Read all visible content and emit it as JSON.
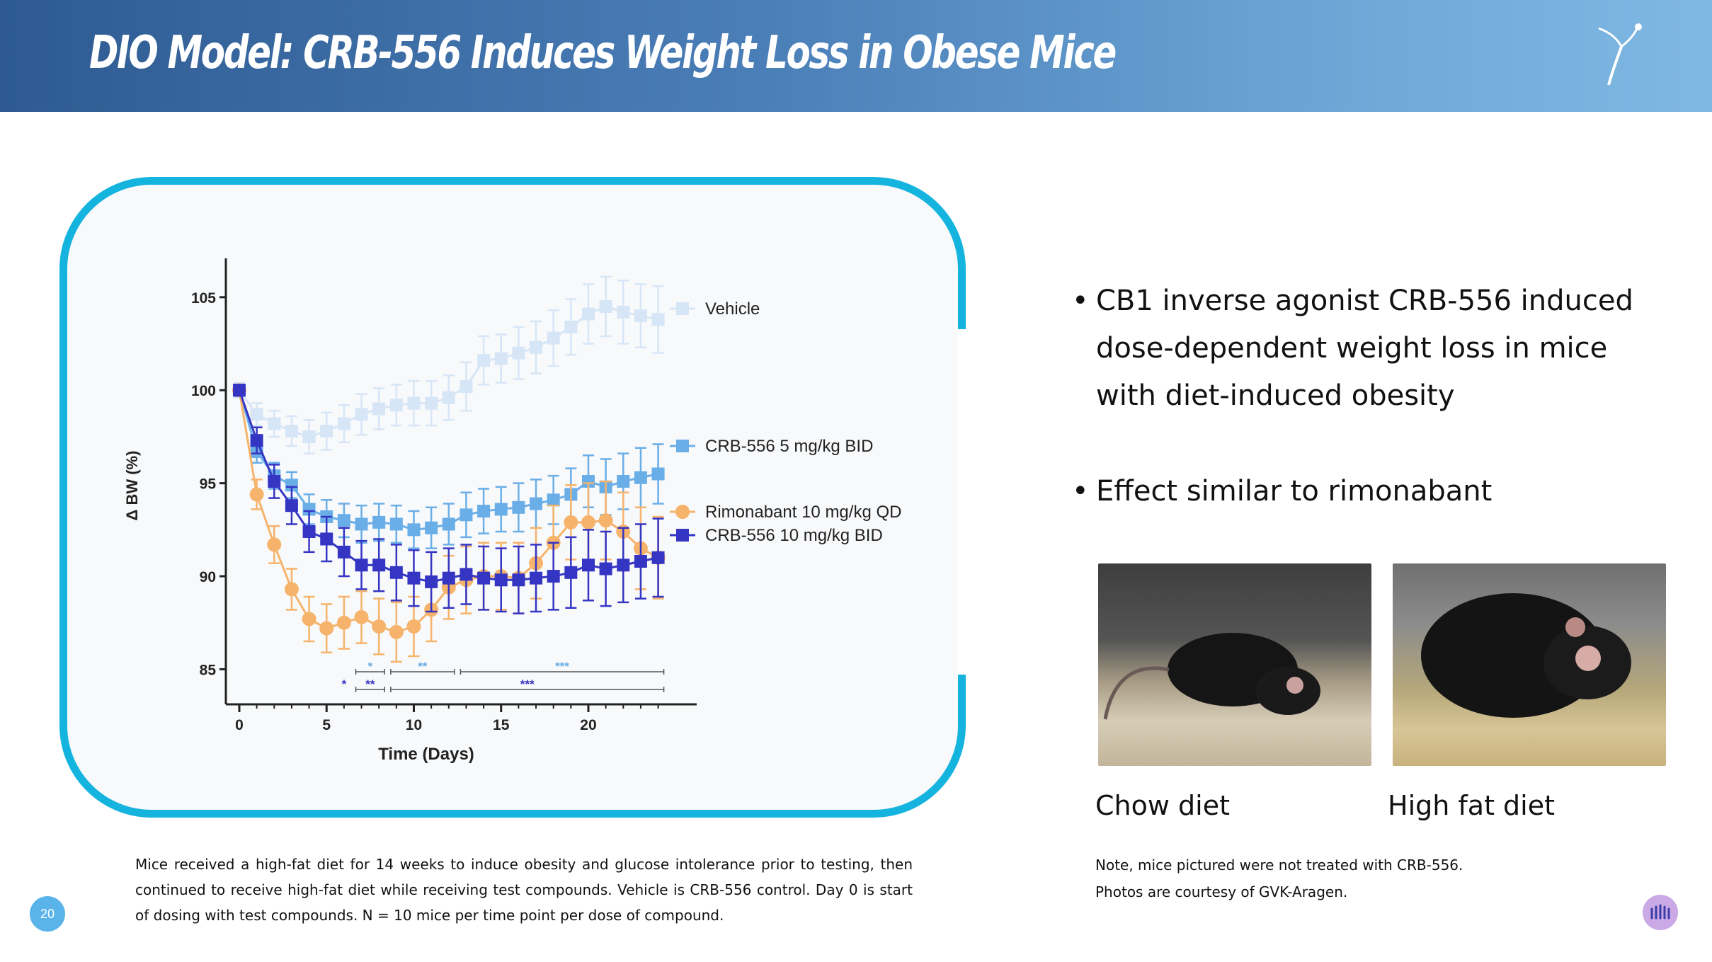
{
  "header": {
    "title": "DIO Model: CRB-556 Induces Weight Loss in Obese Mice"
  },
  "bullets": [
    "CB1 inverse agonist CRB-556 induced dose-dependent weight loss in mice with diet-induced obesity",
    "Effect similar to rimonabant"
  ],
  "photos": {
    "chow_caption": "Chow diet",
    "high_fat_caption": "High fat diet"
  },
  "footnote": "Mice received a high-fat diet for 14 weeks to induce obesity and glucose intolerance prior to testing, then continued to receive high-fat diet while receiving test compounds. Vehicle is CRB-556 control. Day 0 is start of dosing with test compounds. N = 10 mice per time point per dose of compound.",
  "note": {
    "line1": "Note, mice pictured were not treated with CRB-556.",
    "line2": "Photos are courtesy of GVK-Aragen."
  },
  "page_number": "20",
  "colors": {
    "vehicle": "#d6e6f7",
    "crb5": "#6aaee8",
    "crb10": "#3535c4",
    "rimonabant": "#f6b36b",
    "panel_border": "#14b4df"
  },
  "chart_data": {
    "type": "line",
    "xlabel": "Time (Days)",
    "ylabel": "Δ BW (%)",
    "xlim": [
      0,
      24
    ],
    "ylim": [
      83,
      107
    ],
    "xticks": [
      0,
      5,
      10,
      15,
      20
    ],
    "yticks": [
      85,
      90,
      95,
      100,
      105
    ],
    "legend_placement": "right",
    "series": [
      {
        "name": "Vehicle",
        "color": "#d6e6f7",
        "marker": "square",
        "x": [
          0,
          1,
          2,
          3,
          4,
          5,
          6,
          7,
          8,
          9,
          10,
          11,
          12,
          13,
          14,
          15,
          16,
          17,
          18,
          19,
          20,
          21,
          22,
          23,
          24
        ],
        "y": [
          100,
          98.7,
          98.2,
          97.8,
          97.5,
          97.8,
          98.2,
          98.7,
          99.0,
          99.2,
          99.3,
          99.3,
          99.6,
          100.2,
          101.6,
          101.7,
          102.0,
          102.3,
          102.8,
          103.4,
          104.1,
          104.5,
          104.2,
          104.0,
          103.8
        ],
        "err": [
          0.4,
          0.6,
          0.7,
          0.8,
          0.9,
          1.0,
          1.0,
          1.1,
          1.1,
          1.1,
          1.2,
          1.2,
          1.2,
          1.3,
          1.3,
          1.3,
          1.4,
          1.4,
          1.5,
          1.5,
          1.6,
          1.6,
          1.7,
          1.7,
          1.8
        ]
      },
      {
        "name": "CRB-556 5 mg/kg BID",
        "color": "#6aaee8",
        "marker": "square",
        "x": [
          0,
          1,
          2,
          3,
          4,
          5,
          6,
          7,
          8,
          9,
          10,
          11,
          12,
          13,
          14,
          15,
          16,
          17,
          18,
          19,
          20,
          21,
          22,
          23,
          24
        ],
        "y": [
          100,
          96.7,
          95.4,
          94.9,
          93.6,
          93.2,
          93.0,
          92.8,
          92.9,
          92.8,
          92.5,
          92.6,
          92.8,
          93.3,
          93.5,
          93.6,
          93.7,
          93.9,
          94.1,
          94.4,
          95.1,
          94.8,
          95.1,
          95.3,
          95.5
        ],
        "err": [
          0.3,
          0.6,
          0.7,
          0.7,
          0.8,
          0.9,
          0.9,
          1.0,
          1.0,
          1.0,
          1.0,
          1.1,
          1.1,
          1.2,
          1.2,
          1.2,
          1.3,
          1.3,
          1.3,
          1.4,
          1.4,
          1.5,
          1.5,
          1.6,
          1.6
        ]
      },
      {
        "name": "Rimonabant 10 mg/kg QD",
        "color": "#f6b36b",
        "marker": "circle",
        "x": [
          0,
          1,
          2,
          3,
          4,
          5,
          6,
          7,
          8,
          9,
          10,
          11,
          12,
          13,
          14,
          15,
          16,
          17,
          18,
          19,
          20,
          21,
          22,
          23,
          24
        ],
        "y": [
          100,
          94.4,
          91.7,
          89.3,
          87.7,
          87.2,
          87.5,
          87.8,
          87.3,
          87.0,
          87.3,
          88.2,
          89.4,
          89.8,
          90.0,
          90.0,
          89.9,
          90.7,
          91.8,
          92.9,
          92.9,
          93.0,
          92.4,
          91.5,
          91.0
        ],
        "err": [
          0.3,
          0.8,
          1.0,
          1.1,
          1.2,
          1.3,
          1.4,
          1.4,
          1.5,
          1.6,
          1.6,
          1.7,
          1.7,
          1.8,
          1.8,
          1.8,
          1.9,
          1.9,
          2.0,
          2.0,
          2.1,
          2.1,
          2.1,
          2.2,
          2.2
        ]
      },
      {
        "name": "CRB-556 10 mg/kg BID",
        "color": "#3535c4",
        "marker": "square",
        "x": [
          0,
          1,
          2,
          3,
          4,
          5,
          6,
          7,
          8,
          9,
          10,
          11,
          12,
          13,
          14,
          15,
          16,
          17,
          18,
          19,
          20,
          21,
          22,
          23,
          24
        ],
        "y": [
          100,
          97.3,
          95.1,
          93.8,
          92.4,
          92.0,
          91.3,
          90.6,
          90.6,
          90.2,
          89.9,
          89.7,
          89.9,
          90.1,
          89.9,
          89.8,
          89.8,
          89.9,
          90.0,
          90.2,
          90.6,
          90.4,
          90.6,
          90.8,
          91.0
        ],
        "err": [
          0.3,
          0.7,
          0.9,
          1.0,
          1.1,
          1.2,
          1.3,
          1.3,
          1.4,
          1.5,
          1.5,
          1.6,
          1.6,
          1.6,
          1.7,
          1.7,
          1.8,
          1.8,
          1.8,
          1.9,
          1.9,
          2.0,
          2.0,
          2.0,
          2.1
        ]
      }
    ],
    "significance": [
      {
        "label": "*",
        "color": "#6aaee8",
        "x": [
          7,
          8
        ]
      },
      {
        "label": "**",
        "color": "#6aaee8",
        "x": [
          9,
          12
        ]
      },
      {
        "label": "***",
        "color": "#6aaee8",
        "x": [
          13,
          24
        ]
      },
      {
        "label": "*",
        "color": "#3535c4",
        "x": [
          6,
          6
        ]
      },
      {
        "label": "**",
        "color": "#3535c4",
        "x": [
          7,
          8
        ]
      },
      {
        "label": "***",
        "color": "#3535c4",
        "x": [
          9,
          24
        ]
      }
    ]
  }
}
